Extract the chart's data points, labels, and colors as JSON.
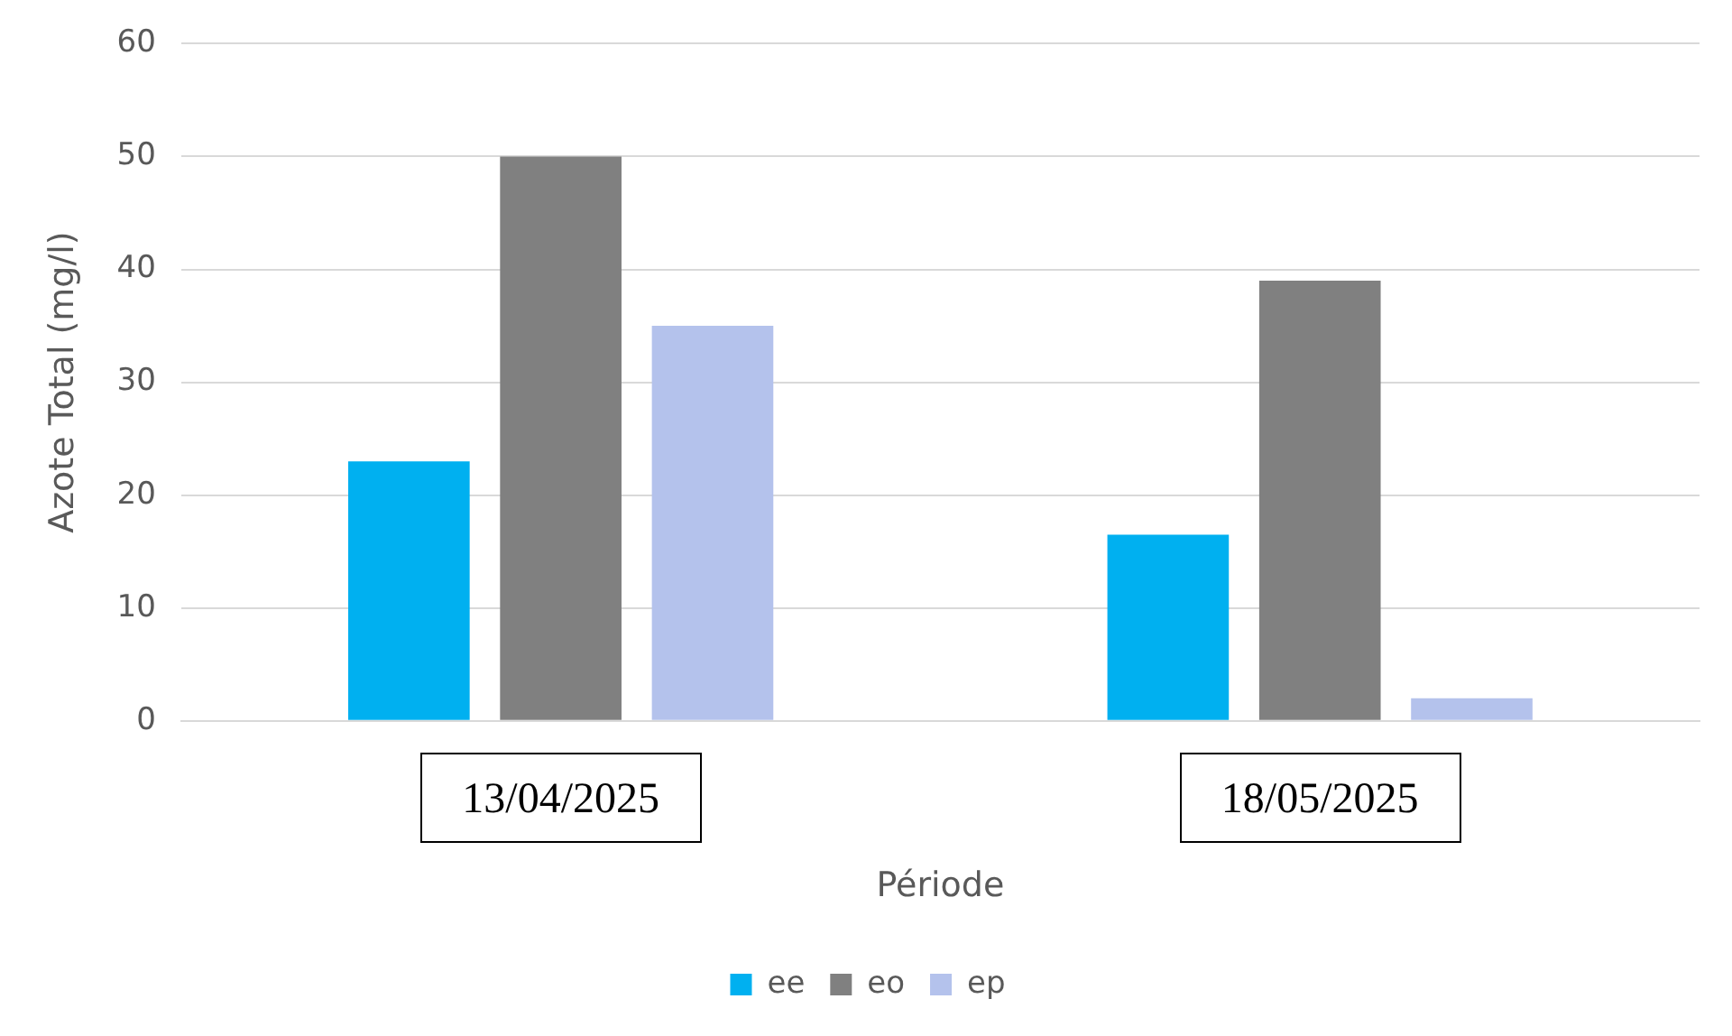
{
  "chart_data": {
    "type": "bar",
    "xlabel": "Période",
    "ylabel": "Azote Total (mg/l)",
    "categories": [
      "13/04/2025",
      "18/05/2025"
    ],
    "series": [
      {
        "name": "ee",
        "color": "#00b0f0",
        "values": [
          23,
          16.5
        ]
      },
      {
        "name": "eo",
        "color": "#808080",
        "values": [
          50,
          39
        ]
      },
      {
        "name": "ep",
        "color": "#b4c2ec",
        "values": [
          35,
          2
        ]
      }
    ],
    "ylim": [
      0,
      60
    ],
    "yticks": [
      0,
      10,
      20,
      30,
      40,
      50,
      60
    ],
    "grid": "y",
    "legend": "bottom"
  }
}
